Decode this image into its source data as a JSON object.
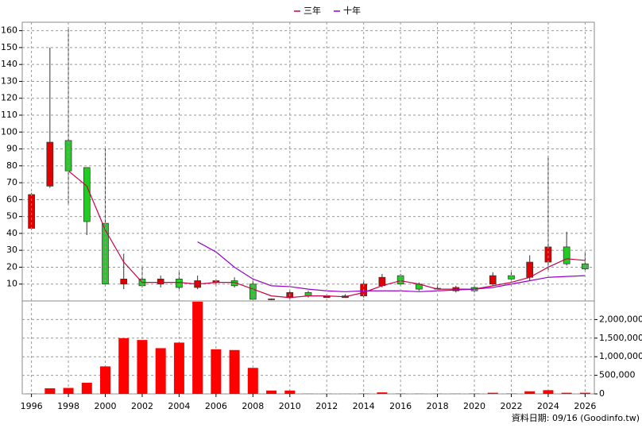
{
  "footer": "資料日期: 09/16 (Goodinfo.tw)",
  "chart_data": [
    {
      "type": "candlestick",
      "x": [
        1996,
        1997,
        1998,
        1999,
        2000,
        2001,
        2002,
        2003,
        2004,
        2005,
        2006,
        2007,
        2008,
        2009,
        2010,
        2011,
        2012,
        2013,
        2014,
        2015,
        2016,
        2017,
        2018,
        2019,
        2020,
        2021,
        2022,
        2023,
        2024,
        2025,
        2026
      ],
      "open": [
        43,
        68,
        95,
        79,
        46,
        10,
        13,
        10,
        13,
        8,
        11,
        12,
        10,
        1,
        2,
        5,
        2,
        2,
        3,
        9,
        15,
        10,
        7,
        6,
        8,
        10,
        15,
        14,
        23,
        32,
        22
      ],
      "high": [
        64,
        150,
        162,
        79,
        90,
        28,
        21,
        15,
        18,
        15,
        13,
        14,
        12,
        1.5,
        6,
        6,
        4,
        4,
        12,
        16,
        16,
        11,
        10,
        9,
        10,
        17,
        17,
        27,
        86,
        41,
        29
      ],
      "low": [
        42,
        67,
        57,
        39,
        10,
        7,
        8,
        8,
        7,
        7,
        9,
        8,
        0.5,
        0.5,
        1,
        2,
        2,
        2,
        2,
        8,
        9,
        6,
        6,
        5,
        5,
        9,
        12,
        12,
        18,
        21,
        18
      ],
      "close": [
        63,
        94,
        77,
        47,
        10,
        13,
        9,
        13,
        8,
        12,
        12,
        9,
        1,
        1.2,
        5,
        3,
        3,
        3,
        10,
        14,
        10,
        7,
        7.5,
        8,
        6,
        15,
        13,
        23,
        32,
        22,
        19
      ],
      "series": [
        {
          "name": "三年",
          "color": "#cc0044",
          "values": [
            null,
            null,
            77,
            68,
            42,
            23,
            11,
            11,
            11,
            10,
            11,
            11,
            7,
            3,
            2,
            3,
            3,
            2.5,
            5,
            9,
            12,
            10,
            7,
            7,
            7,
            9,
            11,
            14,
            20,
            25,
            24
          ]
        },
        {
          "name": "十年",
          "color": "#9900cc",
          "values": [
            null,
            null,
            null,
            null,
            null,
            null,
            null,
            null,
            null,
            35,
            29,
            20,
            13,
            9,
            8.5,
            7,
            6,
            5.5,
            6,
            6,
            6,
            5.5,
            6,
            6.5,
            7,
            8,
            10,
            12,
            14,
            14.5,
            15
          ]
        }
      ],
      "up_color": "#e00000",
      "down_color": "#22cc22",
      "xlim": [
        1995.5,
        2026.5
      ],
      "ylim": [
        0,
        165
      ],
      "yticks": [
        10,
        20,
        30,
        40,
        50,
        60,
        70,
        80,
        90,
        100,
        110,
        120,
        130,
        140,
        150,
        160
      ],
      "grid": true
    },
    {
      "type": "bar",
      "x": [
        1996,
        1997,
        1998,
        1999,
        2000,
        2001,
        2002,
        2003,
        2004,
        2005,
        2006,
        2007,
        2008,
        2009,
        2010,
        2011,
        2012,
        2013,
        2014,
        2015,
        2016,
        2017,
        2018,
        2019,
        2020,
        2021,
        2022,
        2023,
        2024,
        2025,
        2026
      ],
      "values": [
        5000,
        150000,
        160000,
        300000,
        740000,
        1500000,
        1450000,
        1230000,
        1380000,
        2480000,
        1200000,
        1180000,
        700000,
        90000,
        90000,
        5000,
        5000,
        3000,
        10000,
        40000,
        10000,
        5000,
        5000,
        5000,
        10000,
        30000,
        10000,
        70000,
        100000,
        30000,
        30000
      ],
      "color": "#ff0000",
      "xlim": [
        1995.5,
        2026.5
      ],
      "xticks": [
        1996,
        1998,
        2000,
        2002,
        2004,
        2006,
        2008,
        2010,
        2012,
        2014,
        2016,
        2018,
        2020,
        2022,
        2024,
        2026
      ],
      "ylim": [
        0,
        2500000
      ],
      "yticks": [
        0,
        {
          "value": 500000,
          "label": "500,000"
        },
        {
          "value": 1000000,
          "label": "1,000,000"
        },
        {
          "value": 1500000,
          "label": "1,500,000"
        },
        {
          "value": 2000000,
          "label": "2,000,000"
        }
      ],
      "grid": true
    }
  ]
}
